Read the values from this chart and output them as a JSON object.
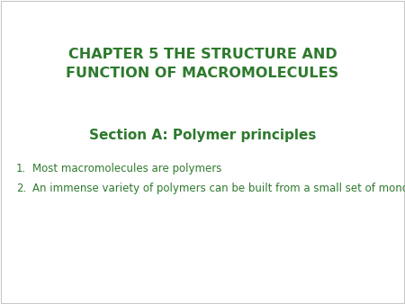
{
  "background_color": "#ffffff",
  "border_color": "#c8c8c8",
  "title_line1": "CHAPTER 5 THE STRUCTURE AND",
  "title_line2": "FUNCTION OF MACROMOLECULES",
  "title_color": "#2d7a2d",
  "title_fontsize": 11.5,
  "section_title": "Section A: Polymer principles",
  "section_color": "#2d7a2d",
  "section_fontsize": 11,
  "list_items": [
    "Most macromolecules are polymers",
    "An immense variety of polymers can be built from a small set of monomers"
  ],
  "list_color": "#2d7a2d",
  "list_fontsize": 8.5
}
